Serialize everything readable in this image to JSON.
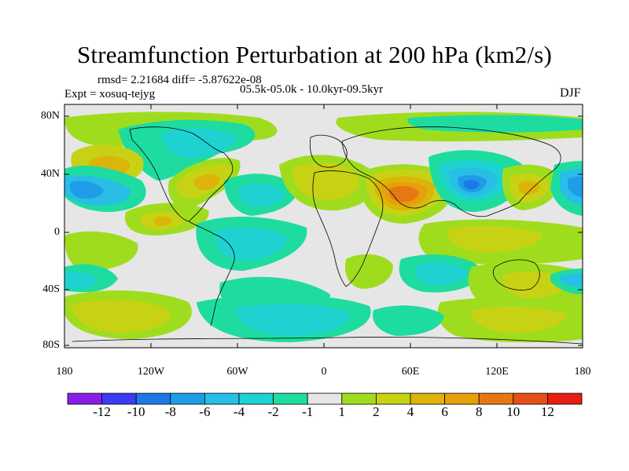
{
  "title": "Streamfunction Perturbation at 200 hPa (km2/s)",
  "stats_line": "rmsd= 2.21684 diff= -5.87622e-08",
  "expt_line": "Expt = xosuq-tejyg",
  "period_line": "05.5k-05.0k - 10.0kyr-09.5kyr",
  "season": "DJF",
  "lat_ticks": [
    "80N",
    "40N",
    "0",
    "40S",
    "80S"
  ],
  "lon_ticks": [
    "180",
    "120W",
    "60W",
    "0",
    "60E",
    "120E",
    "180"
  ],
  "colorbar": {
    "labels": [
      "-12",
      "-10",
      "-8",
      "-6",
      "-4",
      "-2",
      "-1",
      "1",
      "2",
      "4",
      "6",
      "8",
      "10",
      "12"
    ],
    "colors": [
      "#8a1ee6",
      "#3c3cf0",
      "#1e78e6",
      "#1e9ee6",
      "#28bee6",
      "#1ed2d2",
      "#1edca0",
      "#e6e6e6",
      "#a0dc1e",
      "#c8d214",
      "#dcb40a",
      "#e6a00a",
      "#e67814",
      "#e65014",
      "#e61e14"
    ]
  },
  "colors": {
    "neutral": "#e6e6e6",
    "green_yellow": "#a0dc1e",
    "olive_yellow": "#c8d214",
    "gold": "#dcb40a",
    "orange": "#e6a00a",
    "dark_orange": "#e67814",
    "red_orange": "#e65014",
    "aqua_green": "#1edca0",
    "teal": "#1ed2d2",
    "cyan": "#28bee6",
    "light_blue": "#1e9ee6",
    "blue": "#1e78e6"
  }
}
